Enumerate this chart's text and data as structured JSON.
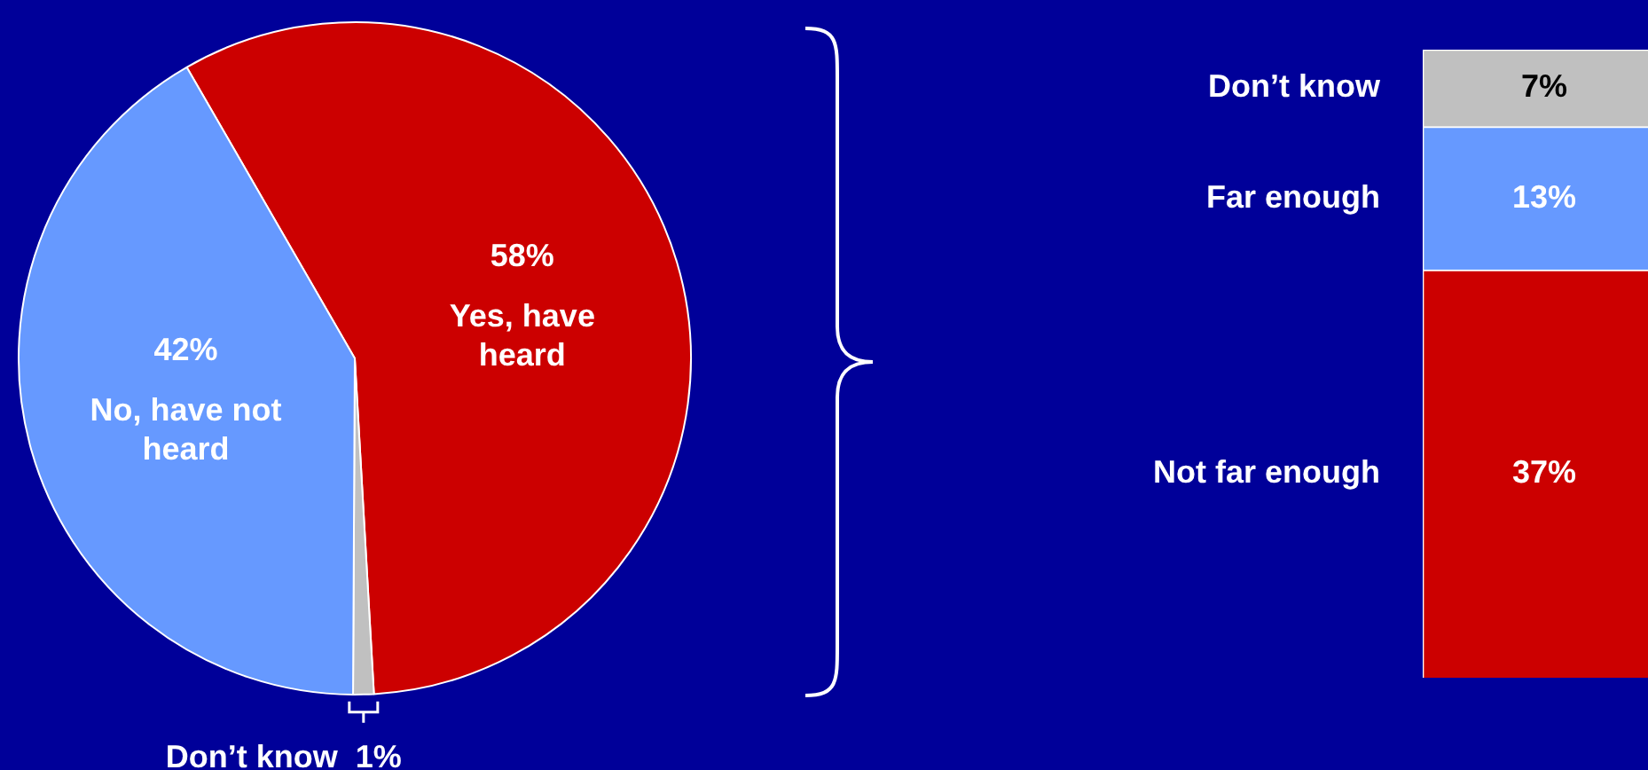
{
  "chart_data": [
    {
      "type": "pie",
      "categories": [
        "Yes, have heard",
        "Don’t know",
        "No, have not heard"
      ],
      "values": [
        58,
        1,
        42
      ],
      "colors": [
        "#cc0000",
        "#c0c0c0",
        "#6699ff"
      ],
      "value_labels": [
        "58%",
        "1%",
        "42%"
      ]
    },
    {
      "type": "bar",
      "stacked": true,
      "tick_labels": false,
      "legend": false,
      "categories": [
        null
      ],
      "series": [
        {
          "name": "Not far enough",
          "color": "#cc0000",
          "values": [
            37
          ],
          "value_labels": [
            "37%"
          ]
        },
        {
          "name": "Far enough",
          "color": "#6699ff",
          "values": [
            13
          ],
          "value_labels": [
            "13%"
          ]
        },
        {
          "name": "Don’t know",
          "color": "#c0c0c0",
          "values": [
            7
          ],
          "value_labels": [
            "7%"
          ]
        }
      ]
    }
  ]
}
